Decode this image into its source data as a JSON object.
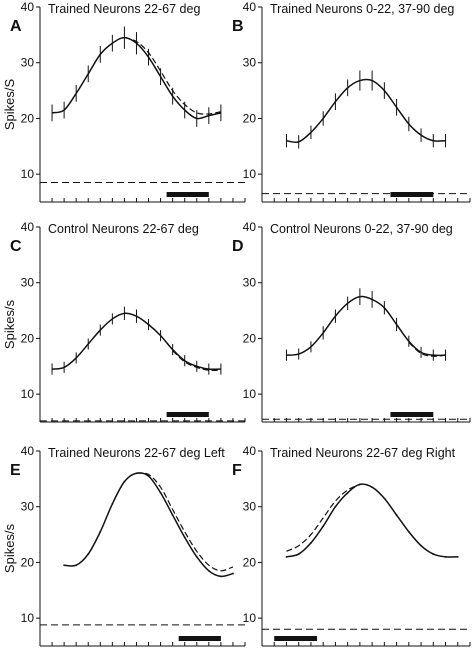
{
  "chart_data": [
    {
      "id": "A",
      "type": "line",
      "panel_letter": "A",
      "title": "Trained Neurons 22-67 deg",
      "ylabel": "Spikes/S",
      "ylim": [
        5,
        40
      ],
      "yticks": [
        10,
        20,
        30,
        40
      ],
      "xlim": [
        0,
        17
      ],
      "xtick_count": 17,
      "baseline": 8.5,
      "stimulus_bar": [
        10.5,
        14
      ],
      "series": [
        {
          "style": "solid",
          "error_bars": true,
          "x": [
            1,
            2,
            3,
            4,
            5,
            6,
            7,
            8,
            9,
            10,
            11,
            12,
            13,
            14,
            15
          ],
          "values": [
            21,
            21.5,
            24.5,
            28,
            31.5,
            33.5,
            34.5,
            33.5,
            31,
            27.5,
            24,
            21.5,
            20,
            20.5,
            21
          ],
          "errors": [
            1.5,
            1.5,
            1.5,
            1.5,
            1.5,
            1.5,
            2,
            2,
            1.5,
            1.5,
            1.5,
            1.5,
            1.5,
            1.5,
            1.5
          ]
        },
        {
          "style": "dashed",
          "error_bars": false,
          "x": [
            7,
            8,
            9,
            10,
            11,
            12,
            13,
            14,
            15
          ],
          "values": [
            34.5,
            33.8,
            31.8,
            28.5,
            25,
            22.5,
            21,
            20.8,
            21.2
          ]
        }
      ]
    },
    {
      "id": "B",
      "type": "line",
      "panel_letter": "B",
      "title": "Trained Neurons 0-22, 37-90 deg",
      "ylabel": "",
      "ylim": [
        5,
        40
      ],
      "yticks": [
        10,
        20,
        30,
        40
      ],
      "xlim": [
        0,
        17
      ],
      "xtick_count": 17,
      "baseline": 6.5,
      "stimulus_bar": [
        10.5,
        14
      ],
      "series": [
        {
          "style": "solid",
          "error_bars": true,
          "x": [
            2,
            3,
            4,
            5,
            6,
            7,
            8,
            9,
            10,
            11,
            12,
            13,
            14,
            15
          ],
          "values": [
            16,
            15.8,
            17.5,
            20,
            23,
            25.5,
            26.8,
            26.8,
            25,
            22,
            19,
            17,
            16,
            16
          ],
          "errors": [
            1.2,
            1.2,
            1.2,
            1.3,
            1.5,
            1.5,
            1.8,
            1.8,
            1.5,
            1.5,
            1.3,
            1.2,
            1.2,
            1.2
          ]
        }
      ]
    },
    {
      "id": "C",
      "type": "line",
      "panel_letter": "C",
      "title": "Control Neurons 22-67 deg",
      "ylabel": "Spikes/s",
      "ylim": [
        5,
        40
      ],
      "yticks": [
        10,
        20,
        30,
        40
      ],
      "xlim": [
        0,
        17
      ],
      "xtick_count": 17,
      "baseline": 5.2,
      "stimulus_bar": [
        10.5,
        14
      ],
      "series": [
        {
          "style": "solid",
          "error_bars": true,
          "x": [
            1,
            2,
            3,
            4,
            5,
            6,
            7,
            8,
            9,
            10,
            11,
            12,
            13,
            14,
            15
          ],
          "values": [
            14.5,
            14.8,
            16.5,
            19,
            21.5,
            23.5,
            24.5,
            24,
            22.5,
            20.5,
            18,
            16,
            15,
            14.5,
            14.5
          ],
          "errors": [
            1,
            1,
            1,
            1,
            1,
            1,
            1.2,
            1.2,
            1,
            1,
            1,
            1,
            1,
            1,
            1
          ]
        },
        {
          "style": "dashed",
          "error_bars": false,
          "x": [
            11,
            12,
            13,
            14,
            15
          ],
          "values": [
            17.8,
            15.8,
            14.8,
            14.3,
            14.3
          ]
        }
      ]
    },
    {
      "id": "D",
      "type": "line",
      "panel_letter": "D",
      "title": "Control Neurons 0-22, 37-90 deg",
      "ylabel": "",
      "ylim": [
        5,
        40
      ],
      "yticks": [
        10,
        20,
        30,
        40
      ],
      "xlim": [
        0,
        17
      ],
      "xtick_count": 17,
      "baseline": 5.5,
      "stimulus_bar": [
        10.5,
        14
      ],
      "series": [
        {
          "style": "solid",
          "error_bars": true,
          "x": [
            2,
            3,
            4,
            5,
            6,
            7,
            8,
            9,
            10,
            11,
            12,
            13,
            14,
            15
          ],
          "values": [
            17,
            17.2,
            18.5,
            21,
            24,
            26.3,
            27.5,
            27,
            25.5,
            22.5,
            19.5,
            17.5,
            17,
            17
          ],
          "errors": [
            1,
            1,
            1,
            1.2,
            1.2,
            1.2,
            1.5,
            1.5,
            1.2,
            1.2,
            1,
            1,
            1,
            1
          ]
        },
        {
          "style": "dashed",
          "error_bars": false,
          "x": [
            12,
            13,
            14,
            15
          ],
          "values": [
            19.3,
            17.3,
            16.8,
            17
          ]
        }
      ]
    },
    {
      "id": "E",
      "type": "line",
      "panel_letter": "E",
      "title": "Trained Neurons 22-67 deg Left",
      "ylabel": "Spikes/s",
      "ylim": [
        5,
        40
      ],
      "yticks": [
        10,
        20,
        30,
        40
      ],
      "xlim": [
        0,
        17
      ],
      "xtick_count": 17,
      "baseline": 8.8,
      "stimulus_bar": [
        11.5,
        15
      ],
      "series": [
        {
          "style": "solid",
          "error_bars": false,
          "x": [
            2,
            3,
            4,
            5,
            6,
            7,
            8,
            9,
            10,
            11,
            12,
            13,
            14,
            15,
            16
          ],
          "values": [
            19.5,
            19.5,
            21.5,
            25.5,
            30.5,
            34.5,
            36,
            35.5,
            32.5,
            28.5,
            24.5,
            21,
            18.5,
            17.5,
            18
          ]
        },
        {
          "style": "dashed",
          "error_bars": false,
          "x": [
            8,
            9,
            10,
            11,
            12,
            13,
            14,
            15,
            16
          ],
          "values": [
            36,
            35.8,
            33.5,
            29.5,
            25.5,
            22,
            19.5,
            18.5,
            19.2
          ]
        }
      ]
    },
    {
      "id": "F",
      "type": "line",
      "panel_letter": "F",
      "title": "Trained Neurons 22-67 deg Right",
      "ylabel": "",
      "ylim": [
        5,
        40
      ],
      "yticks": [
        10,
        20,
        30,
        40
      ],
      "xlim": [
        0,
        17
      ],
      "xtick_count": 17,
      "baseline": 8.0,
      "stimulus_bar": [
        1,
        4.5
      ],
      "series": [
        {
          "style": "solid",
          "error_bars": false,
          "x": [
            2,
            3,
            4,
            5,
            6,
            7,
            8,
            9,
            10,
            11,
            12,
            13,
            14,
            15,
            16
          ],
          "values": [
            21,
            21.5,
            23.5,
            26.5,
            30,
            32.5,
            34,
            33.5,
            31.5,
            28.5,
            25.5,
            23,
            21.5,
            21,
            21
          ]
        },
        {
          "style": "dashed",
          "error_bars": false,
          "x": [
            2,
            3,
            4,
            5,
            6,
            7,
            8
          ],
          "values": [
            22,
            23,
            25,
            28,
            31,
            33,
            34
          ]
        }
      ]
    }
  ]
}
